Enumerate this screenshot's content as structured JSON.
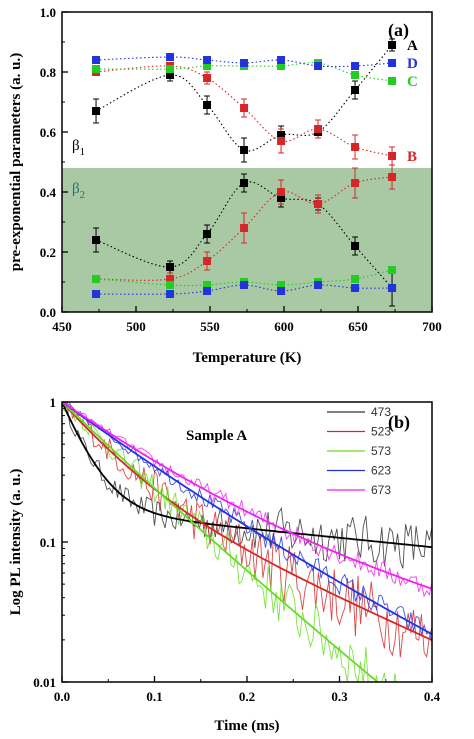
{
  "chart_data": [
    {
      "type": "scatter",
      "panel_label": "(a)",
      "xlabel": "Temperature (K)",
      "ylabel": "pre-exponential parameters (a. u.)",
      "xlim": [
        450,
        700
      ],
      "ylim": [
        0.0,
        1.0
      ],
      "xticks": [
        450,
        500,
        550,
        600,
        650,
        700
      ],
      "yticks": [
        0.0,
        0.2,
        0.4,
        0.6,
        0.8,
        1.0
      ],
      "shaded_region": {
        "y_from": 0.0,
        "y_to": 0.48,
        "color": "#a9c9a4"
      },
      "region_labels": [
        {
          "label": "β",
          "sub": "1",
          "color": "#000000"
        },
        {
          "label": "β",
          "sub": "2",
          "color": "#2f6b6b"
        }
      ],
      "x": [
        473,
        523,
        548,
        573,
        598,
        623,
        648,
        673
      ],
      "series": [
        {
          "name": "A",
          "group": "β1",
          "color": "#000000",
          "values": [
            0.67,
            0.79,
            0.69,
            0.54,
            0.59,
            0.6,
            0.74,
            0.89
          ],
          "errors": [
            0.04,
            0.02,
            0.03,
            0.04,
            0.03,
            0.02,
            0.03,
            0.02
          ]
        },
        {
          "name": "B",
          "group": "β1",
          "color": "#d62728",
          "values": [
            0.8,
            0.82,
            0.78,
            0.68,
            0.57,
            0.61,
            0.55,
            0.52
          ],
          "errors": [
            0.01,
            0.01,
            0.02,
            0.03,
            0.04,
            0.03,
            0.04,
            0.03
          ]
        },
        {
          "name": "C",
          "group": "β1",
          "color": "#22cc22",
          "values": [
            0.81,
            0.81,
            0.82,
            0.82,
            0.82,
            0.83,
            0.79,
            0.77
          ],
          "errors": [
            0.01,
            0.01,
            0.01,
            0.01,
            0.01,
            0.01,
            0.01,
            0.01
          ]
        },
        {
          "name": "D",
          "group": "β1",
          "color": "#2233dd",
          "values": [
            0.84,
            0.85,
            0.84,
            0.83,
            0.84,
            0.82,
            0.82,
            0.83
          ],
          "errors": [
            0.01,
            0.01,
            0.01,
            0.01,
            0.01,
            0.01,
            0.01,
            0.01
          ]
        },
        {
          "name": "A",
          "group": "β2",
          "color": "#000000",
          "values": [
            0.24,
            0.15,
            0.26,
            0.43,
            0.38,
            0.36,
            0.22,
            0.08
          ],
          "errors": [
            0.04,
            0.02,
            0.03,
            0.03,
            0.03,
            0.02,
            0.03,
            0.06
          ]
        },
        {
          "name": "B",
          "group": "β2",
          "color": "#d62728",
          "values": [
            0.11,
            0.11,
            0.17,
            0.28,
            0.4,
            0.36,
            0.43,
            0.45
          ],
          "errors": [
            0.01,
            0.02,
            0.03,
            0.05,
            0.04,
            0.03,
            0.05,
            0.04
          ]
        },
        {
          "name": "C",
          "group": "β2",
          "color": "#22cc22",
          "values": [
            0.11,
            0.09,
            0.09,
            0.1,
            0.09,
            0.1,
            0.11,
            0.14
          ],
          "errors": [
            0.01,
            0.01,
            0.01,
            0.01,
            0.01,
            0.01,
            0.01,
            0.01
          ]
        },
        {
          "name": "D",
          "group": "β2",
          "color": "#2233dd",
          "values": [
            0.06,
            0.06,
            0.07,
            0.09,
            0.07,
            0.09,
            0.08,
            0.08
          ],
          "errors": [
            0.01,
            0.01,
            0.01,
            0.01,
            0.01,
            0.01,
            0.01,
            0.01
          ]
        }
      ]
    },
    {
      "type": "line",
      "panel_label": "(b)",
      "title": "Sample A",
      "xlabel": "Time (ms)",
      "ylabel": "Log PL intensity (a. u.)",
      "xlim": [
        0.0,
        0.4
      ],
      "ylim": [
        0.01,
        1
      ],
      "yscale": "log",
      "xticks": [
        0.0,
        0.1,
        0.2,
        0.3,
        0.4
      ],
      "yticks": [
        0.01,
        0.1,
        1
      ],
      "legend_position": "top-right",
      "series": [
        {
          "name": "473",
          "color": "#333333",
          "fit": {
            "a1": 0.83,
            "t1": 0.025,
            "a2": 0.17,
            "t2": 0.65
          },
          "noise": 0.42
        },
        {
          "name": "523",
          "color": "#d62728",
          "fit": {
            "a1": 0.7,
            "t1": 0.048,
            "a2": 0.3,
            "t2": 0.147
          },
          "noise": 0.55
        },
        {
          "name": "573",
          "color": "#66dd22",
          "fit": {
            "a1": 0.55,
            "t1": 0.06,
            "a2": 0.45,
            "t2": 0.085
          },
          "noise": 0.45
        },
        {
          "name": "623",
          "color": "#2233dd",
          "fit": {
            "a1": 0.7,
            "t1": 0.08,
            "a2": 0.3,
            "t2": 0.14
          },
          "noise": 0.2
        },
        {
          "name": "673",
          "color": "#ee22ee",
          "fit": {
            "a1": 0.8,
            "t1": 0.085,
            "a2": 0.2,
            "t2": 0.245
          },
          "noise": 0.18
        }
      ]
    }
  ]
}
